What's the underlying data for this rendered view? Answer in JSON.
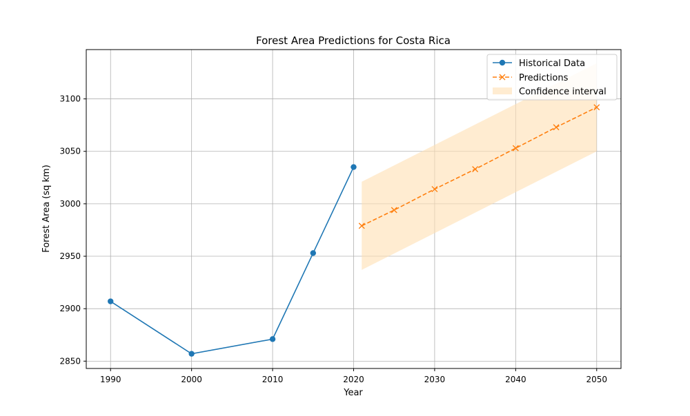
{
  "chart_data": {
    "type": "line",
    "title": "Forest Area Predictions for Costa Rica",
    "xlabel": "Year",
    "ylabel": "Forest Area (sq km)",
    "xlim": [
      1987,
      2053
    ],
    "ylim": [
      2843,
      3147
    ],
    "x_ticks": [
      1990,
      2000,
      2010,
      2020,
      2030,
      2040,
      2050
    ],
    "y_ticks": [
      2850,
      2900,
      2950,
      3000,
      3050,
      3100
    ],
    "grid": true,
    "legend_position": "top-right",
    "colors": {
      "historical": "#1f77b4",
      "predictions": "#ff7f0e",
      "confidence": "#ffe0b3"
    },
    "series": [
      {
        "name": "Historical Data",
        "style": "solid-circle-markers",
        "x": [
          1990,
          2000,
          2010,
          2015,
          2020
        ],
        "y": [
          2907,
          2857,
          2871,
          2953,
          3035
        ]
      },
      {
        "name": "Predictions",
        "style": "dashed-x-markers",
        "x": [
          2021,
          2025,
          2030,
          2035,
          2040,
          2045,
          2050
        ],
        "y": [
          2979,
          2994,
          3014,
          3033,
          3053,
          3073,
          3092
        ]
      }
    ],
    "confidence_interval": {
      "name": "Confidence interval",
      "x": [
        2021,
        2050
      ],
      "lower": [
        2937,
        3050
      ],
      "upper": [
        3021,
        3134
      ]
    }
  }
}
